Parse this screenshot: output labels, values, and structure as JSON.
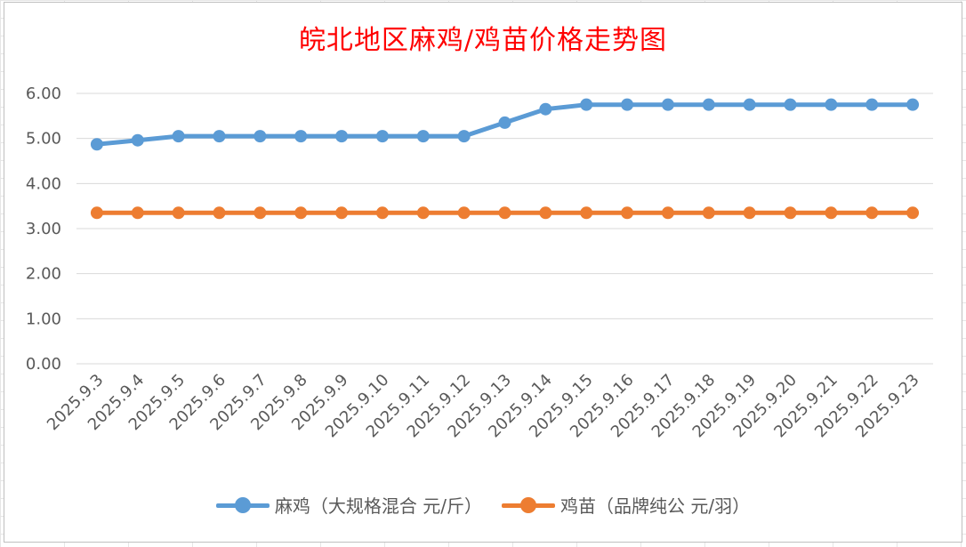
{
  "chart_data": {
    "type": "line",
    "title": "皖北地区麻鸡/鸡苗价格走势图",
    "categories": [
      "2025.9.3",
      "2025.9.4",
      "2025.9.5",
      "2025.9.6",
      "2025.9.7",
      "2025.9.8",
      "2025.9.9",
      "2025.9.10",
      "2025.9.11",
      "2025.9.12",
      "2025.9.13",
      "2025.9.14",
      "2025.9.15",
      "2025.9.16",
      "2025.9.17",
      "2025.9.18",
      "2025.9.19",
      "2025.9.20",
      "2025.9.21",
      "2025.9.22",
      "2025.9.23"
    ],
    "series": [
      {
        "name": "麻鸡（大规格混合 元/斤）",
        "color": "#5b9bd5",
        "values": [
          4.87,
          4.96,
          5.05,
          5.05,
          5.05,
          5.05,
          5.05,
          5.05,
          5.05,
          5.05,
          5.35,
          5.65,
          5.75,
          5.75,
          5.75,
          5.75,
          5.75,
          5.75,
          5.75,
          5.75,
          5.75
        ]
      },
      {
        "name": "鸡苗（品牌纯公 元/羽）",
        "color": "#ed7d31",
        "values": [
          3.35,
          3.35,
          3.35,
          3.35,
          3.35,
          3.35,
          3.35,
          3.35,
          3.35,
          3.35,
          3.35,
          3.35,
          3.35,
          3.35,
          3.35,
          3.35,
          3.35,
          3.35,
          3.35,
          3.35,
          3.35
        ]
      }
    ],
    "ylim": [
      0,
      6
    ],
    "yticks": [
      "0.00",
      "1.00",
      "2.00",
      "3.00",
      "4.00",
      "5.00",
      "6.00"
    ],
    "grid": true,
    "legend_position": "bottom",
    "title_color": "#ff0000"
  }
}
